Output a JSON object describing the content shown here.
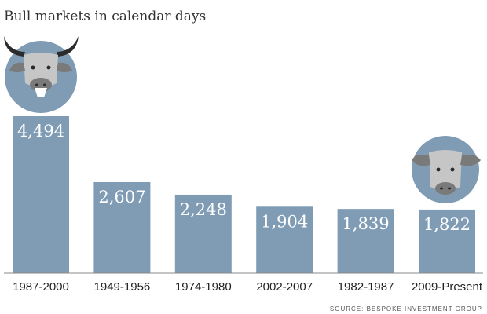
{
  "chart_data": {
    "type": "bar",
    "title": "Bull markets in calendar days",
    "categories": [
      "1987-2000",
      "1949-1956",
      "1974-1980",
      "2002-2007",
      "1982-1987",
      "2009-Present"
    ],
    "values": [
      4494,
      2607,
      2248,
      1904,
      1839,
      1822
    ],
    "value_labels": [
      "4,494",
      "2,607",
      "2,248",
      "1,904",
      "1,839",
      "1,822"
    ],
    "xlabel": "",
    "ylabel": "",
    "ylim": [
      0,
      5000
    ],
    "grid": false,
    "source": "SOURCE: BESPOKE INVESTMENT GROUP",
    "colors": {
      "bar": "#7f9cb4",
      "baseline": "#888888",
      "circle": "#7f9cb4",
      "bull_face": "#c6c6c6",
      "horns": "#2b2b2b",
      "muzzle": "#7a7a7a"
    },
    "icons": [
      "bull-head-large-icon",
      "bull-head-small-icon"
    ]
  }
}
